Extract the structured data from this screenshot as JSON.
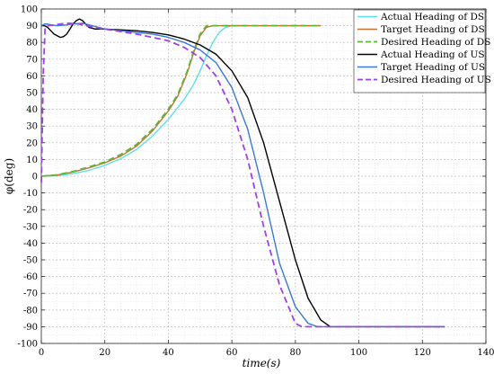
{
  "chart_data": {
    "type": "line",
    "title": "",
    "xlabel": "time(s)",
    "ylabel": "φ(deg)",
    "xlim": [
      0,
      140
    ],
    "ylim": [
      -100,
      100
    ],
    "xticks": [
      0,
      20,
      40,
      60,
      80,
      100,
      120,
      140
    ],
    "yticks": [
      -100,
      -90,
      -80,
      -70,
      -60,
      -50,
      -40,
      -30,
      -20,
      -10,
      0,
      10,
      20,
      30,
      40,
      50,
      60,
      70,
      80,
      90,
      100
    ],
    "grid": true,
    "legend_position": "top-right",
    "series": [
      {
        "name": "Actual Heading of DS",
        "color": "#5ee0e8",
        "dash": "solid",
        "x": [
          0,
          5,
          10,
          15,
          20,
          25,
          30,
          35,
          40,
          45,
          48,
          50,
          52,
          54,
          56,
          58,
          60,
          65,
          70,
          75,
          80,
          88
        ],
        "y": [
          0,
          0.3,
          1.5,
          3.5,
          6.5,
          10.5,
          16,
          24,
          34,
          46,
          55,
          63,
          72,
          80,
          86,
          89,
          90,
          90,
          90,
          90,
          90,
          90
        ]
      },
      {
        "name": "Target Heading of DS",
        "color": "#c8703a",
        "dash": "solid",
        "x": [
          0,
          5,
          10,
          15,
          20,
          25,
          30,
          35,
          40,
          43,
          46,
          48,
          50,
          52,
          54,
          56,
          60,
          70,
          80,
          88
        ],
        "y": [
          0,
          0.7,
          2.5,
          5,
          8,
          12,
          18,
          27,
          39,
          48,
          62,
          74,
          84,
          89,
          90,
          90,
          90,
          90,
          90,
          90
        ]
      },
      {
        "name": "Desired Heading of DS",
        "color": "#5cb82e",
        "dash": "dashed",
        "x": [
          0,
          5,
          10,
          15,
          20,
          25,
          30,
          35,
          40,
          43,
          46,
          48,
          50,
          52,
          54,
          56,
          60,
          70,
          80,
          88
        ],
        "y": [
          0,
          0.8,
          2.8,
          5.5,
          8.5,
          13,
          19,
          28,
          40,
          49,
          63,
          75,
          85,
          90,
          90,
          90,
          90,
          90,
          90,
          90
        ]
      },
      {
        "name": "Actual Heading of US",
        "color": "#000000",
        "dash": "solid",
        "x": [
          0,
          1,
          2,
          3,
          4,
          5,
          6,
          7,
          8,
          9,
          10,
          11,
          12,
          13,
          14,
          15,
          17,
          20,
          25,
          30,
          35,
          40,
          45,
          50,
          55,
          60,
          65,
          70,
          75,
          80,
          84,
          88,
          91,
          95,
          100,
          110,
          120,
          127
        ],
        "y": [
          90,
          90,
          89,
          87,
          85,
          84,
          83,
          83.5,
          85,
          88,
          91,
          93,
          94,
          93,
          91,
          89,
          88,
          88,
          87.5,
          87,
          86,
          84.5,
          82,
          78.5,
          73,
          63,
          47,
          20,
          -15,
          -50,
          -73,
          -86,
          -90,
          -90,
          -90,
          -90,
          -90,
          -90
        ]
      },
      {
        "name": "Target Heading of US",
        "color": "#3a78d8",
        "dash": "solid",
        "x": [
          0,
          1,
          2,
          3,
          5,
          8,
          10,
          13,
          16,
          20,
          25,
          30,
          35,
          40,
          45,
          50,
          55,
          60,
          65,
          70,
          75,
          80,
          84,
          87,
          90,
          95,
          100,
          110,
          120,
          127
        ],
        "y": [
          90,
          91,
          91,
          90.5,
          90,
          90.5,
          91,
          91.5,
          90,
          88,
          87,
          86,
          85,
          83,
          80,
          75.5,
          68,
          53,
          28,
          -10,
          -52,
          -78,
          -88,
          -90,
          -90,
          -90,
          -90,
          -90,
          -90,
          -90
        ]
      },
      {
        "name": "Desired Heading of US",
        "color": "#a040e8",
        "dash": "dashed",
        "x": [
          0,
          0.6,
          1.2,
          2,
          4,
          8,
          12,
          14,
          18,
          20,
          25,
          30,
          35,
          40,
          45,
          50,
          55,
          60,
          65,
          70,
          75,
          80,
          82,
          85,
          90,
          100,
          110,
          120,
          127
        ],
        "y": [
          -4,
          60,
          89,
          90,
          90.5,
          91.5,
          91,
          90,
          88.5,
          88,
          86.5,
          85,
          83,
          81,
          77,
          71,
          60,
          40,
          10,
          -30,
          -65,
          -88,
          -90,
          -90,
          -90,
          -90,
          -90,
          -90,
          -90
        ]
      }
    ]
  }
}
